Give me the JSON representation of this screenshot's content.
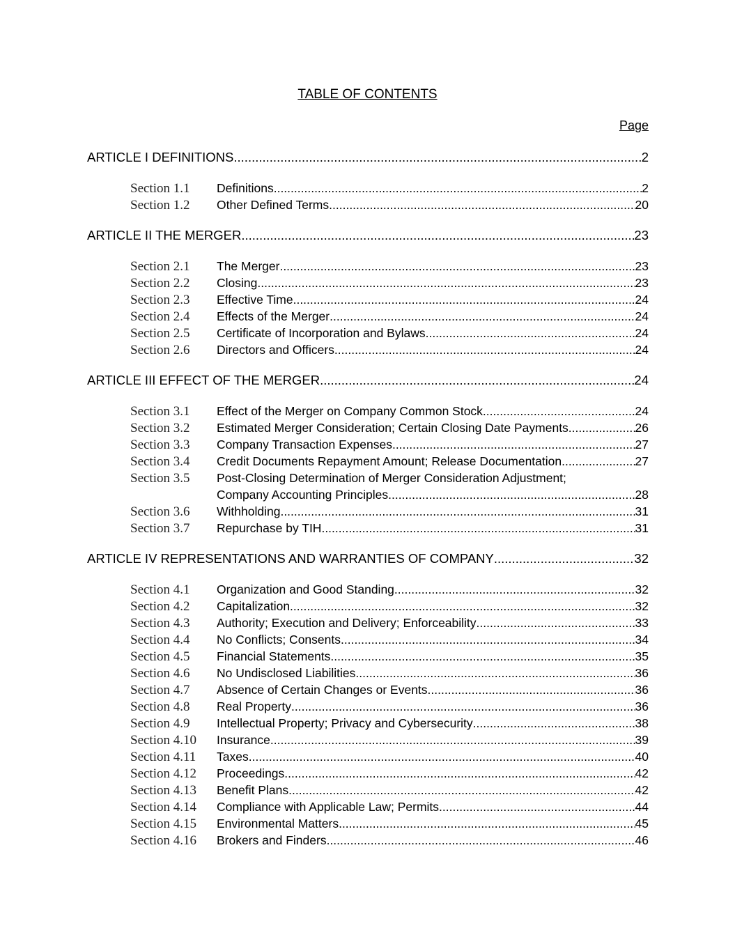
{
  "title": "TABLE OF CONTENTS",
  "page_header": "Page",
  "articles": [
    {
      "title": "ARTICLE I DEFINITIONS",
      "page": "2",
      "sections": [
        {
          "label": "Section 1.1",
          "title": "Definitions",
          "page": "2"
        },
        {
          "label": "Section 1.2",
          "title": "Other Defined Terms",
          "page": "20"
        }
      ]
    },
    {
      "title": "ARTICLE II THE MERGER",
      "page": "23",
      "sections": [
        {
          "label": "Section 2.1",
          "title": "The Merger",
          "page": "23"
        },
        {
          "label": "Section 2.2",
          "title": "Closing",
          "page": "23"
        },
        {
          "label": "Section 2.3",
          "title": "Effective Time",
          "page": "24"
        },
        {
          "label": "Section 2.4",
          "title": "Effects of the Merger",
          "page": "24"
        },
        {
          "label": "Section 2.5",
          "title": "Certificate of Incorporation and Bylaws",
          "page": "24"
        },
        {
          "label": "Section 2.6",
          "title": "Directors and Officers",
          "page": "24"
        }
      ]
    },
    {
      "title": "ARTICLE III EFFECT OF THE MERGER",
      "page": "24",
      "sections": [
        {
          "label": "Section 3.1",
          "title": "Effect of the Merger on Company Common Stock.",
          "page": "24"
        },
        {
          "label": "Section 3.2",
          "title": "Estimated Merger Consideration; Certain Closing Date Payments.",
          "page": "26"
        },
        {
          "label": "Section 3.3",
          "title": "Company Transaction Expenses",
          "page": "27"
        },
        {
          "label": "Section 3.4",
          "title": "Credit Documents Repayment Amount; Release Documentation",
          "page": "27"
        },
        {
          "label": "Section 3.5",
          "title": "Post-Closing Determination of Merger Consideration Adjustment;",
          "continuation": "Company Accounting Principles.",
          "page": "28"
        },
        {
          "label": "Section 3.6",
          "title": "Withholding",
          "page": "31"
        },
        {
          "label": "Section 3.7",
          "title": "Repurchase by TIH",
          "page": "31"
        }
      ]
    },
    {
      "title": "ARTICLE IV REPRESENTATIONS AND WARRANTIES OF COMPANY",
      "page": "32",
      "sections": [
        {
          "label": "Section 4.1",
          "title": "Organization and Good Standing",
          "page": "32"
        },
        {
          "label": "Section 4.2",
          "title": "Capitalization.",
          "page": "32"
        },
        {
          "label": "Section 4.3",
          "title": "Authority; Execution and Delivery; Enforceability",
          "page": "33"
        },
        {
          "label": "Section 4.4",
          "title": "No Conflicts; Consents.",
          "page": "34"
        },
        {
          "label": "Section 4.5",
          "title": "Financial Statements",
          "page": "35"
        },
        {
          "label": "Section 4.6",
          "title": "No Undisclosed Liabilities",
          "page": "36"
        },
        {
          "label": "Section 4.7",
          "title": "Absence of Certain Changes or Events",
          "page": "36"
        },
        {
          "label": "Section 4.8",
          "title": "Real Property",
          "page": "36"
        },
        {
          "label": "Section 4.9",
          "title": "Intellectual Property; Privacy and Cybersecurity",
          "page": "38"
        },
        {
          "label": "Section 4.10",
          "title": "Insurance",
          "page": "39"
        },
        {
          "label": "Section 4.11",
          "title": "Taxes",
          "page": "40"
        },
        {
          "label": "Section 4.12",
          "title": "Proceedings",
          "page": "42"
        },
        {
          "label": "Section 4.13",
          "title": "Benefit Plans",
          "page": "42"
        },
        {
          "label": "Section 4.14",
          "title": "Compliance with Applicable Law; Permits",
          "page": "44"
        },
        {
          "label": "Section 4.15",
          "title": "Environmental Matters",
          "page": "45"
        },
        {
          "label": "Section 4.16",
          "title": "Brokers and Finders",
          "page": "46"
        }
      ]
    }
  ]
}
